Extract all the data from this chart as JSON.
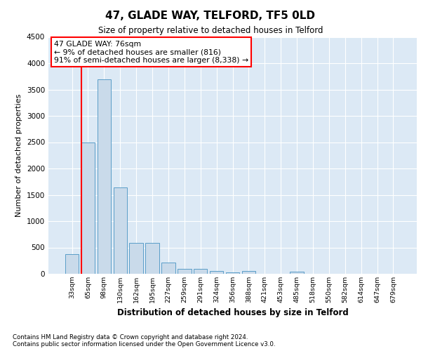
{
  "title": "47, GLADE WAY, TELFORD, TF5 0LD",
  "subtitle": "Size of property relative to detached houses in Telford",
  "xlabel": "Distribution of detached houses by size in Telford",
  "ylabel": "Number of detached properties",
  "categories": [
    "33sqm",
    "65sqm",
    "98sqm",
    "130sqm",
    "162sqm",
    "195sqm",
    "227sqm",
    "259sqm",
    "291sqm",
    "324sqm",
    "356sqm",
    "388sqm",
    "421sqm",
    "453sqm",
    "485sqm",
    "518sqm",
    "550sqm",
    "582sqm",
    "614sqm",
    "647sqm",
    "679sqm"
  ],
  "values": [
    370,
    2500,
    3700,
    1640,
    590,
    590,
    210,
    100,
    90,
    50,
    30,
    50,
    0,
    0,
    40,
    0,
    0,
    0,
    0,
    0,
    0
  ],
  "bar_color": "#c9daea",
  "bar_edge_color": "#5a9dc8",
  "red_line_index": 1,
  "annotation_text": "47 GLADE WAY: 76sqm\n← 9% of detached houses are smaller (816)\n91% of semi-detached houses are larger (8,338) →",
  "annotation_box_color": "white",
  "annotation_edge_color": "red",
  "ylim": [
    0,
    4500
  ],
  "yticks": [
    0,
    500,
    1000,
    1500,
    2000,
    2500,
    3000,
    3500,
    4000,
    4500
  ],
  "background_color": "#dce9f5",
  "grid_color": "white",
  "footer_line1": "Contains HM Land Registry data © Crown copyright and database right 2024.",
  "footer_line2": "Contains public sector information licensed under the Open Government Licence v3.0."
}
